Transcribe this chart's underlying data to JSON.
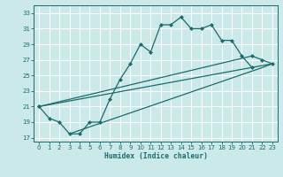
{
  "bg_color": "#cce9e9",
  "grid_color": "#ffffff",
  "line_color": "#1a6b6b",
  "xlabel": "Humidex (Indice chaleur)",
  "xlim": [
    -0.5,
    23.5
  ],
  "ylim": [
    16.5,
    34.0
  ],
  "xticks": [
    0,
    1,
    2,
    3,
    4,
    5,
    6,
    7,
    8,
    9,
    10,
    11,
    12,
    13,
    14,
    15,
    16,
    17,
    18,
    19,
    20,
    21,
    22,
    23
  ],
  "yticks": [
    17,
    19,
    21,
    23,
    25,
    27,
    29,
    31,
    33
  ],
  "curve_x": [
    0,
    1,
    2,
    3,
    4,
    5,
    6,
    7,
    8,
    9,
    10,
    11,
    12,
    13,
    14,
    15,
    16,
    17,
    18,
    19,
    20,
    21
  ],
  "curve_y": [
    21.0,
    19.5,
    19.0,
    17.5,
    17.5,
    19.0,
    19.0,
    22.0,
    24.5,
    26.5,
    29.0,
    28.0,
    31.5,
    31.5,
    32.5,
    31.0,
    31.0,
    31.5,
    29.5,
    29.5,
    27.5,
    26.0
  ],
  "line1_x": [
    0,
    21,
    22,
    23
  ],
  "line1_y": [
    21.0,
    27.5,
    27.0,
    26.5
  ],
  "line2_x": [
    3,
    22,
    23
  ],
  "line2_y": [
    17.5,
    26.0,
    26.5
  ],
  "line3_x": [
    0,
    23
  ],
  "line3_y": [
    21.0,
    26.5
  ]
}
